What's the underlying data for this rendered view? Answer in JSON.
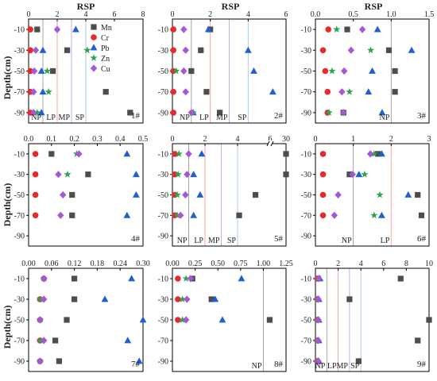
{
  "figure": {
    "top_axis_title": "RSP",
    "y_axis_title": "Depth(cm)",
    "legend": [
      {
        "key": "Mn",
        "label": "Mn"
      },
      {
        "key": "Cr",
        "label": "Cr"
      },
      {
        "key": "Pb",
        "label": "Pb"
      },
      {
        "key": "Zn",
        "label": "Zn"
      },
      {
        "key": "Cu",
        "label": "Cu"
      }
    ],
    "series_style": {
      "Mn": {
        "color": "#4d4d4d",
        "marker": "square"
      },
      "Cr": {
        "color": "#e8292b",
        "marker": "circle"
      },
      "Pb": {
        "color": "#1f5fd6",
        "marker": "triangle"
      },
      "Zn": {
        "color": "#2ea44f",
        "marker": "star"
      },
      "Cu": {
        "color": "#a557d6",
        "marker": "diamond"
      }
    },
    "threshold_lines": {
      "NP": "#999999",
      "LP": "#ff9999",
      "MP": "#c9a0e6",
      "SP": "#9ec4ee"
    }
  },
  "chart_data": [
    {
      "type": "scatter",
      "id": "1",
      "sample_label": "1#",
      "xlim": [
        0,
        8
      ],
      "xticks": [
        "0",
        "2",
        "4",
        "6",
        "8"
      ],
      "ylim": [
        -100,
        0
      ],
      "yticks": [
        "-10",
        "-30",
        "-50",
        "-70",
        "-90"
      ],
      "depths": [
        -10,
        -30,
        -50,
        -70,
        -90
      ],
      "thresholds": [
        {
          "name": "NP",
          "x": 1
        },
        {
          "name": "LP",
          "x": 2
        },
        {
          "name": "MP",
          "x": 3
        },
        {
          "name": "SP",
          "x": 4
        }
      ],
      "series": {
        "Mn": [
          0.6,
          2.7,
          1.7,
          5.4,
          7.1
        ],
        "Cr": [
          0.12,
          0.12,
          0.12,
          0.12,
          0.12
        ],
        "Pb": [
          3.3,
          1.0,
          0.9,
          1.0,
          0.9
        ],
        "Zn": [
          null,
          4.1,
          1.3,
          1.4,
          0.6
        ],
        "Cu": [
          2.0,
          0.5,
          0.4,
          0.35,
          0.35
        ]
      }
    },
    {
      "type": "scatter",
      "id": "2",
      "sample_label": "2#",
      "xlim": [
        0,
        6
      ],
      "xticks": [
        "0",
        "2",
        "4",
        "6"
      ],
      "ylim": [
        -100,
        0
      ],
      "yticks": [
        "-10",
        "-30",
        "-50",
        "-70",
        "-90"
      ],
      "depths": [
        -10,
        -30,
        -50,
        -70,
        -90
      ],
      "thresholds": [
        {
          "name": "NP",
          "x": 1
        },
        {
          "name": "LP",
          "x": 2
        },
        {
          "name": "MP",
          "x": 3
        },
        {
          "name": "SP",
          "x": 4
        }
      ],
      "series": {
        "Mn": [
          2.0,
          1.5,
          1.0,
          1.8,
          2.5
        ],
        "Cr": [
          0.05,
          0.05,
          0.05,
          0.05,
          0.05
        ],
        "Pb": [
          1.9,
          4.0,
          4.3,
          5.3,
          1.1
        ],
        "Zn": [
          null,
          null,
          0.2,
          null,
          1.1
        ],
        "Cu": [
          0.6,
          0.7,
          0.6,
          0.7,
          1.0
        ]
      }
    },
    {
      "type": "scatter",
      "id": "3",
      "sample_label": "3#",
      "xlim": [
        0,
        1.5
      ],
      "xticks": [
        "0.0",
        "0.5",
        "1.0",
        "1.5"
      ],
      "ylim": [
        -100,
        0
      ],
      "yticks": [
        "-10",
        "-30",
        "-50",
        "-70",
        "-90"
      ],
      "depths": [
        -10,
        -30,
        -50,
        -70,
        -90
      ],
      "thresholds": [
        {
          "name": "NP",
          "x": 1.0
        }
      ],
      "series": {
        "Mn": [
          0.42,
          0.97,
          1.05,
          1.05,
          0.37
        ],
        "Cr": [
          0.17,
          0.1,
          0.13,
          0.16,
          0.16
        ],
        "Pb": [
          0.82,
          1.27,
          0.75,
          0.7,
          0.88
        ],
        "Zn": [
          0.28,
          0.73,
          0.22,
          0.45,
          0.18
        ],
        "Cu": [
          0.62,
          0.47,
          0.38,
          0.35,
          0.37
        ]
      }
    },
    {
      "type": "scatter",
      "id": "4",
      "sample_label": "4#",
      "xlim": [
        0,
        0.5
      ],
      "xticks": [
        "0.0",
        "0.1",
        "0.2",
        "0.3",
        "0.4",
        "0.5"
      ],
      "ylim": [
        -100,
        0
      ],
      "yticks": [
        "-10",
        "-30",
        "-50",
        "-70",
        "-90"
      ],
      "depths": [
        -10,
        -30,
        -50,
        -70
      ],
      "thresholds": [],
      "series": {
        "Mn": [
          0.1,
          0.26,
          0.19,
          0.19
        ],
        "Cr": [
          0.03,
          0.03,
          0.03,
          0.03
        ],
        "Pb": [
          0.43,
          0.47,
          0.47,
          0.43
        ],
        "Zn": [
          0.21,
          0.17,
          null,
          null
        ],
        "Cu": [
          0.22,
          0.13,
          0.15,
          0.14
        ]
      }
    },
    {
      "type": "scatter",
      "id": "5",
      "sample_label": "5#",
      "xlim": [
        0,
        30
      ],
      "xticks": [
        "0",
        "2",
        "4",
        "6",
        "30"
      ],
      "axis_break": true,
      "ylim": [
        -100,
        0
      ],
      "yticks": [
        "-10",
        "-30",
        "-50",
        "-70",
        "-90"
      ],
      "depths": [
        -10,
        -30,
        -50,
        -70
      ],
      "thresholds": [
        {
          "name": "NP",
          "x": 1
        },
        {
          "name": "LP",
          "x": 2
        },
        {
          "name": "MP",
          "x": 3
        },
        {
          "name": "SP",
          "x": 4
        }
      ],
      "series": {
        "Mn": [
          30,
          30,
          5.1,
          4.1
        ],
        "Cr": [
          0.15,
          0.15,
          0.15,
          0.15
        ],
        "Pb": [
          1.8,
          1.3,
          1.7,
          1.3
        ],
        "Zn": [
          0.4,
          0.35,
          0.3,
          0.3
        ],
        "Cu": [
          1.0,
          0.9,
          0.8,
          0.5
        ]
      }
    },
    {
      "type": "scatter",
      "id": "6",
      "sample_label": "6#",
      "xlim": [
        0,
        3
      ],
      "xticks": [
        "0",
        "1",
        "2",
        "3"
      ],
      "ylim": [
        -100,
        0
      ],
      "yticks": [
        "-10",
        "-30",
        "-50",
        "-70",
        "-90"
      ],
      "depths": [
        -10,
        -30,
        -50,
        -70
      ],
      "thresholds": [
        {
          "name": "NP",
          "x": 1
        },
        {
          "name": "LP",
          "x": 2
        }
      ],
      "series": {
        "Mn": [
          1.65,
          0.9,
          2.7,
          2.8
        ],
        "Cr": [
          0.2,
          0.2,
          0.2,
          0.2
        ],
        "Pb": [
          1.75,
          1.15,
          2.45,
          1.75
        ],
        "Zn": [
          1.55,
          1.3,
          1.7,
          1.55
        ],
        "Cu": [
          1.45,
          0.98,
          0.6,
          0.5
        ]
      }
    },
    {
      "type": "scatter",
      "id": "7",
      "sample_label": "7#",
      "xlim": [
        0,
        0.3
      ],
      "xticks": [
        "0.00",
        "0.06",
        "0.12",
        "0.18",
        "0.24",
        "0.30"
      ],
      "ylim": [
        -100,
        0
      ],
      "yticks": [
        "-10",
        "-30",
        "-50",
        "-70",
        "-90"
      ],
      "depths": [
        -10,
        -30,
        -50,
        -70,
        -90
      ],
      "thresholds": [],
      "series": {
        "Mn": [
          0.12,
          0.12,
          0.1,
          0.07,
          0.08
        ],
        "Cr": [
          0.04,
          0.03,
          0.03,
          0.03,
          0.03
        ],
        "Pb": [
          0.27,
          0.2,
          0.3,
          0.26,
          0.29
        ],
        "Zn": [
          0.04,
          0.03,
          0.03,
          0.03,
          0.03
        ],
        "Cu": [
          0.04,
          0.04,
          0.03,
          0.04,
          0.03
        ]
      }
    },
    {
      "type": "scatter",
      "id": "8",
      "sample_label": "8#",
      "xlim": [
        0,
        1.25
      ],
      "xticks": [
        "0.00",
        "0.25",
        "0.50",
        "0.75",
        "1.00",
        "1.25"
      ],
      "ylim": [
        -100,
        0
      ],
      "yticks": [
        "-10",
        "-30",
        "-50",
        "-70",
        "-90"
      ],
      "depths": [
        -10,
        -30,
        -50
      ],
      "thresholds": [
        {
          "name": "NP",
          "x": 1.0
        }
      ],
      "series": {
        "Mn": [
          0.22,
          0.43,
          1.07
        ],
        "Cr": [
          0.06,
          0.06,
          0.06
        ],
        "Pb": [
          0.76,
          0.47,
          0.55
        ],
        "Zn": [
          0.15,
          0.11,
          0.11
        ],
        "Cu": [
          0.2,
          0.16,
          0.15
        ]
      }
    },
    {
      "type": "scatter",
      "id": "9",
      "sample_label": "9#",
      "xlim": [
        0,
        10
      ],
      "xticks": [
        "0",
        "2",
        "4",
        "6",
        "8",
        "10"
      ],
      "ylim": [
        -100,
        0
      ],
      "yticks": [
        "-10",
        "-30",
        "-50",
        "-70",
        "-90"
      ],
      "depths": [
        -10,
        -30,
        -50,
        -70,
        -90
      ],
      "thresholds": [
        {
          "name": "NP",
          "x": 1
        },
        {
          "name": "LP",
          "x": 2
        },
        {
          "name": "MP",
          "x": 3
        },
        {
          "name": "SP",
          "x": 4
        }
      ],
      "series": {
        "Mn": [
          7.5,
          3.0,
          10.0,
          9.0,
          3.8
        ],
        "Cr": [
          0.15,
          0.15,
          0.15,
          0.15,
          0.15
        ],
        "Pb": [
          0.4,
          0.3,
          0.3,
          0.3,
          0.3
        ],
        "Zn": [
          0.2,
          0.15,
          0.15,
          0.15,
          0.15
        ],
        "Cu": [
          0.3,
          0.25,
          0.25,
          0.25,
          0.25
        ]
      }
    }
  ]
}
